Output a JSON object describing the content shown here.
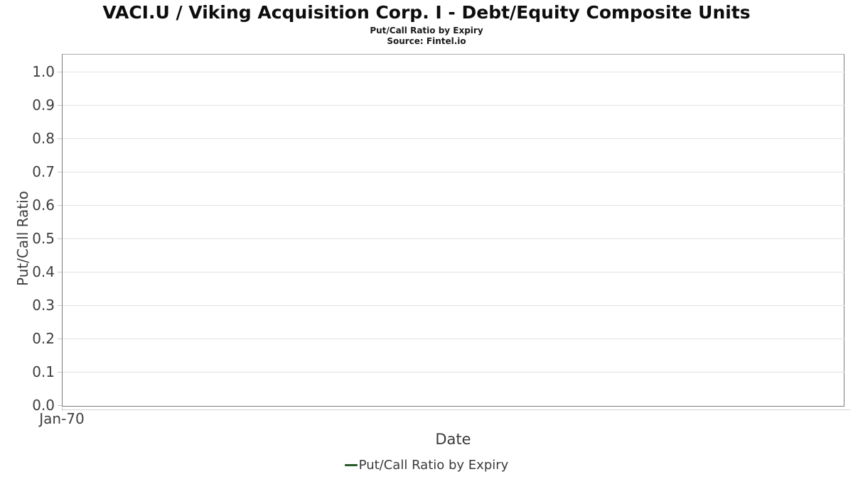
{
  "chart_data": {
    "type": "line",
    "title": "VACI.U / Viking Acquisition Corp. I - Debt/Equity Composite Units",
    "subtitle": "Put/Call Ratio by Expiry",
    "source": "Source: Fintel.io",
    "xlabel": "Date",
    "ylabel": "Put/Call Ratio",
    "x_ticks": [
      "Jan-70"
    ],
    "y_ticks": [
      "0.0",
      "0.1",
      "0.2",
      "0.3",
      "0.4",
      "0.5",
      "0.6",
      "0.7",
      "0.8",
      "0.9",
      "1.0"
    ],
    "ylim": [
      0.0,
      1.05
    ],
    "grid": true,
    "legend_position": "bottom",
    "series": [
      {
        "name": "Put/Call Ratio by Expiry",
        "color": "#275a28",
        "x": [],
        "values": []
      }
    ]
  }
}
